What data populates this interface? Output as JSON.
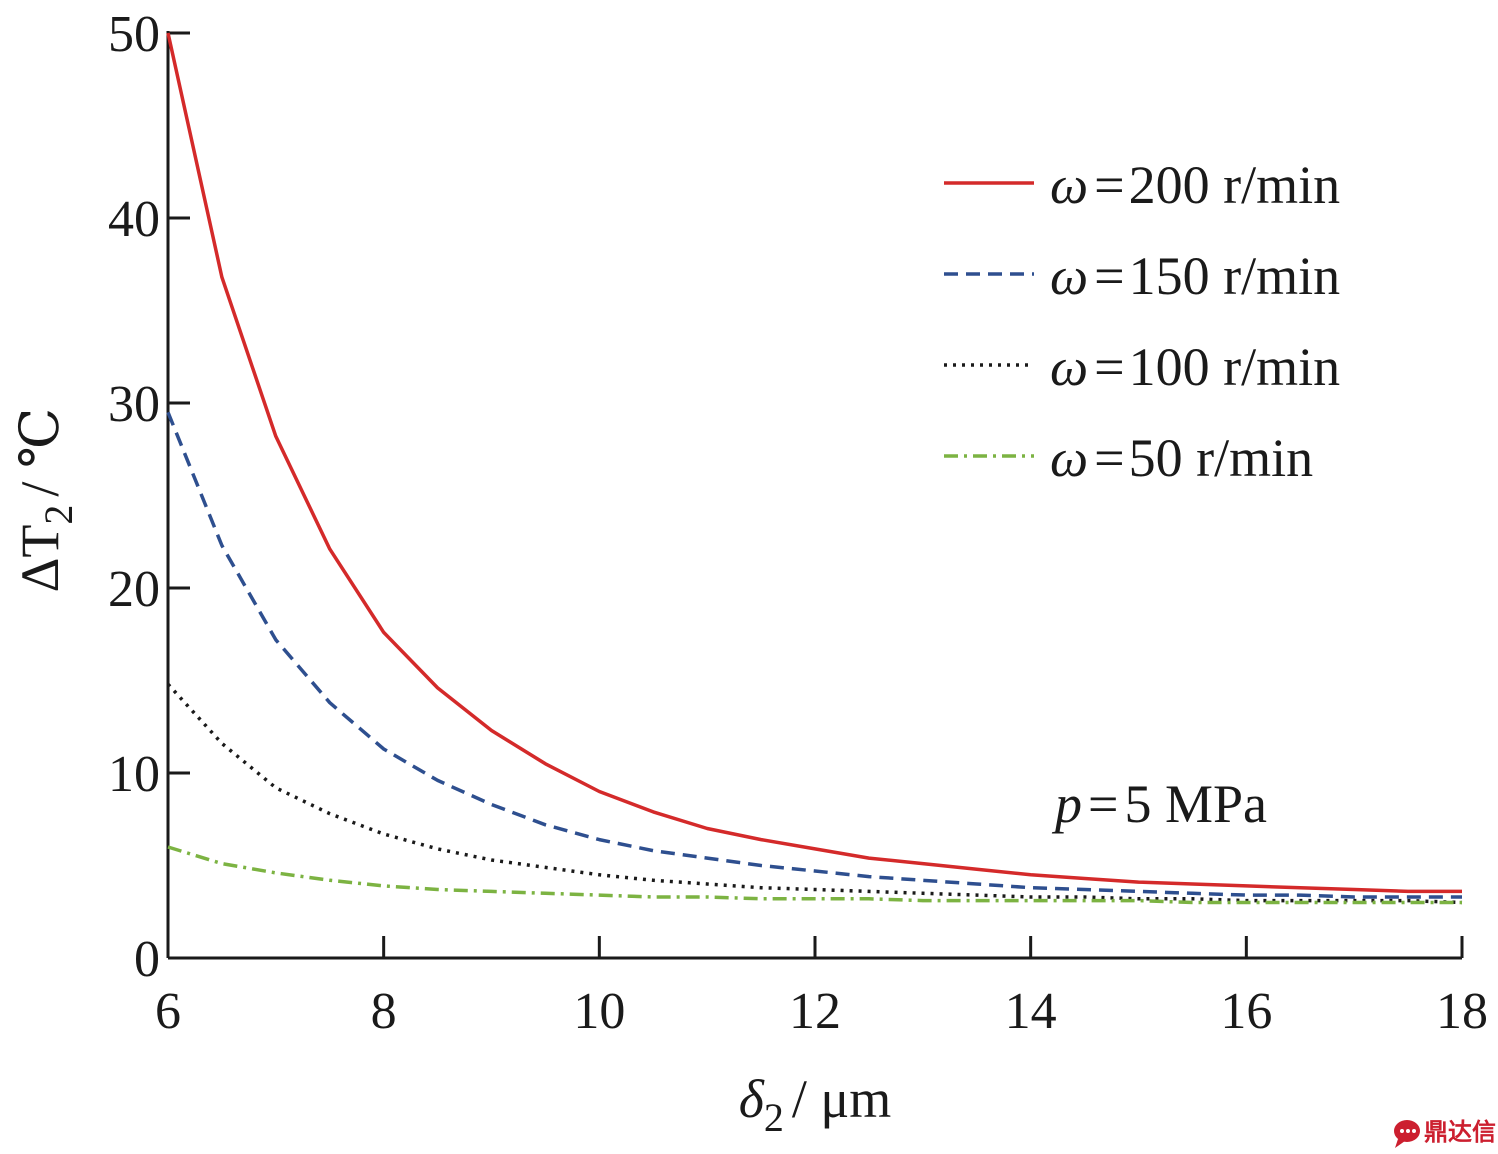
{
  "chart_data": {
    "type": "line",
    "xlabel": {
      "symbol": "δ",
      "sub": "2",
      "unit": "μm"
    },
    "ylabel": {
      "symbol": "ΔT",
      "sub": "2",
      "unit": "℃"
    },
    "xlim": [
      6,
      18
    ],
    "ylim": [
      0,
      50
    ],
    "xticks": [
      6,
      8,
      10,
      12,
      14,
      16,
      18
    ],
    "yticks": [
      0,
      10,
      20,
      30,
      40,
      50
    ],
    "grid": false,
    "legend": "top-right",
    "annotation": {
      "var": "p",
      "text": "5 MPa"
    },
    "x": [
      6,
      6.5,
      7,
      7.5,
      8,
      8.5,
      9,
      9.5,
      10,
      10.5,
      11,
      11.5,
      12,
      12.5,
      13,
      13.5,
      14,
      14.5,
      15,
      15.5,
      16,
      16.5,
      17,
      17.5,
      18
    ],
    "series": [
      {
        "name": "200 r/min",
        "color": "#d42a2a",
        "dash": "solid",
        "values": [
          50,
          36.8,
          28.2,
          22.1,
          17.6,
          14.6,
          12.3,
          10.5,
          9.0,
          7.9,
          7.0,
          6.4,
          5.9,
          5.4,
          5.1,
          4.8,
          4.5,
          4.3,
          4.1,
          4.0,
          3.9,
          3.8,
          3.7,
          3.6,
          3.6
        ]
      },
      {
        "name": "150 r/min",
        "color": "#2e4f8f",
        "dash": "dashed",
        "values": [
          29.5,
          22.3,
          17.2,
          13.8,
          11.3,
          9.6,
          8.3,
          7.2,
          6.4,
          5.8,
          5.4,
          5.0,
          4.7,
          4.4,
          4.2,
          4.0,
          3.8,
          3.7,
          3.6,
          3.5,
          3.4,
          3.4,
          3.3,
          3.3,
          3.3
        ]
      },
      {
        "name": "100 r/min",
        "color": "#1a1a1a",
        "dash": "dotted",
        "values": [
          14.8,
          11.6,
          9.2,
          7.8,
          6.7,
          5.9,
          5.3,
          4.9,
          4.5,
          4.2,
          4.0,
          3.8,
          3.7,
          3.6,
          3.5,
          3.4,
          3.3,
          3.3,
          3.2,
          3.2,
          3.1,
          3.1,
          3.1,
          3.1,
          3.0
        ]
      },
      {
        "name": "50 r/min",
        "color": "#7cb342",
        "dash": "dashdot",
        "values": [
          6.0,
          5.1,
          4.6,
          4.2,
          3.9,
          3.7,
          3.6,
          3.5,
          3.4,
          3.3,
          3.3,
          3.2,
          3.2,
          3.2,
          3.1,
          3.1,
          3.1,
          3.1,
          3.1,
          3.0,
          3.0,
          3.0,
          3.0,
          3.0,
          3.0
        ]
      }
    ]
  },
  "legend_prefix": {
    "var": "ω",
    "eq": "="
  },
  "watermark": {
    "text": "鼎达信",
    "icon": "chat-bubble-icon"
  }
}
